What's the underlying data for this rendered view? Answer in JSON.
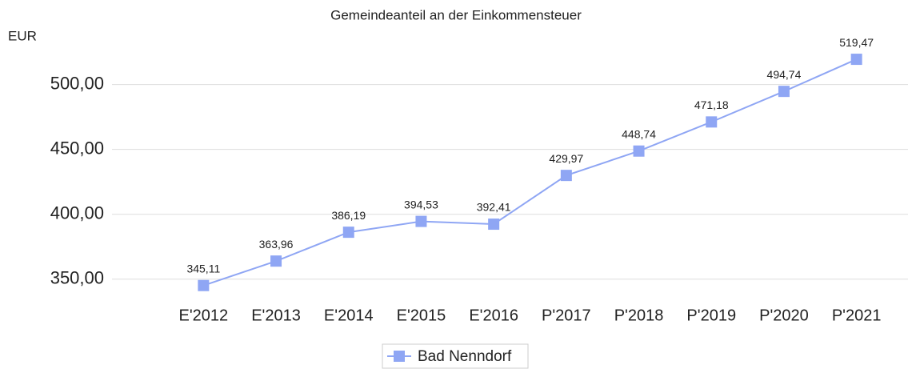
{
  "chart_data": {
    "type": "line",
    "title": "Gemeindeanteil an der Einkommensteuer",
    "y_label": "EUR",
    "categories": [
      "E'2012",
      "E'2013",
      "E'2014",
      "E'2015",
      "E'2016",
      "P'2017",
      "P'2018",
      "P'2019",
      "P'2020",
      "P'2021"
    ],
    "series": [
      {
        "name": "Bad Nenndorf",
        "color": "#8fa6f4",
        "values": [
          345.11,
          363.96,
          386.19,
          394.53,
          392.41,
          429.97,
          448.74,
          471.18,
          494.74,
          519.47
        ],
        "value_labels": [
          "345,11",
          "363,96",
          "386,19",
          "394,53",
          "392,41",
          "429,97",
          "448,74",
          "471,18",
          "494,74",
          "519,47"
        ]
      }
    ],
    "ylim": [
      340,
      530
    ],
    "yticks": [
      {
        "value": 350,
        "label": "350,00"
      },
      {
        "value": 400,
        "label": "400,00"
      },
      {
        "value": 450,
        "label": "450,00"
      },
      {
        "value": 500,
        "label": "500,00"
      }
    ],
    "grid": true,
    "legend": "bottom"
  }
}
